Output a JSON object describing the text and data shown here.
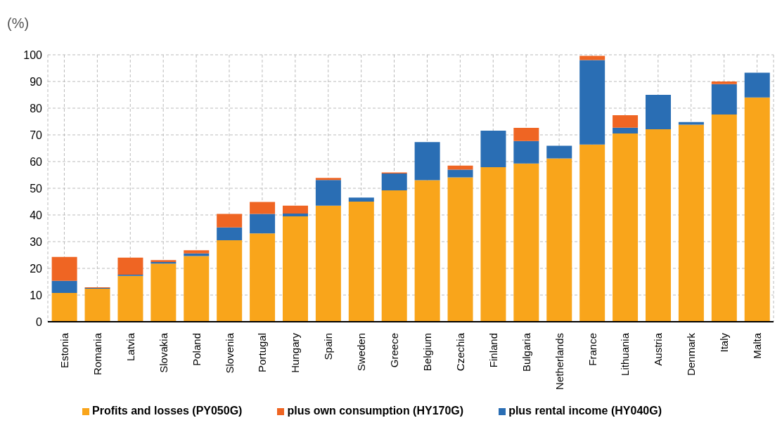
{
  "chart_data": {
    "type": "bar",
    "ylabel": "(%)",
    "stacked": true,
    "grid": true,
    "legend": "bottom",
    "categories": [
      "Estonia",
      "Romania",
      "Latvia",
      "Slovakia",
      "Poland",
      "Slovenia",
      "Portugal",
      "Hungary",
      "Spain",
      "Sweden",
      "Greece",
      "Belgium",
      "Czechia",
      "Finland",
      "Bulgaria",
      "Netherlands",
      "France",
      "Lithuania",
      "Austria",
      "Denmark",
      "Italy",
      "Malta"
    ],
    "series": [
      {
        "name": "Profits and losses (PY050G)",
        "color": "#f9a51b",
        "values": [
          10.8,
          12.4,
          17.2,
          21.8,
          24.6,
          30.5,
          33.1,
          39.5,
          43.5,
          45.0,
          49.2,
          53.0,
          54.1,
          57.9,
          59.3,
          61.2,
          66.4,
          70.5,
          72.1,
          73.8,
          77.6,
          84.0
        ]
      },
      {
        "name": "plus rental income (HY040G)",
        "color": "#2a6eb4",
        "values": [
          4.5,
          0.2,
          0.4,
          0.6,
          1.0,
          4.8,
          7.3,
          1.0,
          9.6,
          1.5,
          6.3,
          14.3,
          2.9,
          13.7,
          8.4,
          4.7,
          31.6,
          2.2,
          12.9,
          1.0,
          11.4,
          9.3
        ]
      },
      {
        "name": "plus own consumption (HY170G)",
        "color": "#ef6523",
        "values": [
          9.0,
          0.3,
          6.4,
          0.7,
          1.2,
          5.1,
          4.5,
          3.0,
          0.8,
          null,
          0.4,
          null,
          1.5,
          null,
          4.9,
          null,
          1.6,
          4.7,
          null,
          null,
          1.0,
          null
        ]
      }
    ],
    "ylim": [
      0,
      100
    ],
    "yticks": [
      0,
      10,
      20,
      30,
      40,
      50,
      60,
      70,
      80,
      90,
      100
    ]
  }
}
